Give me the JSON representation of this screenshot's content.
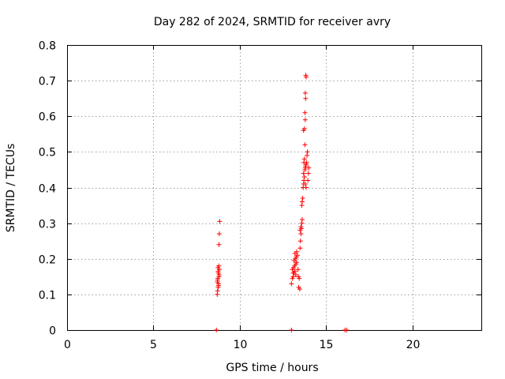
{
  "chart_data": {
    "type": "scatter",
    "title": "Day 282 of 2024, SRMTID for receiver avry",
    "xlabel": "GPS time / hours",
    "ylabel": "SRMTID / TECUs",
    "xlim": [
      0,
      24
    ],
    "ylim": [
      0,
      0.8
    ],
    "xticks": [
      0,
      5,
      10,
      15,
      20
    ],
    "yticks": [
      0,
      0.1,
      0.2,
      0.3,
      0.4,
      0.5,
      0.6,
      0.7,
      0.8
    ],
    "xtick_labels": [
      "0",
      "5",
      "10",
      "15",
      "20"
    ],
    "ytick_labels": [
      "0",
      "0.1",
      "0.2",
      "0.3",
      "0.4",
      "0.5",
      "0.6",
      "0.7",
      "0.8"
    ],
    "grid": true,
    "marker": "plus",
    "color": "#ff0000",
    "series": [
      {
        "name": "SRMTID",
        "points": [
          [
            8.7,
            0.1
          ],
          [
            8.72,
            0.11
          ],
          [
            8.75,
            0.12
          ],
          [
            8.78,
            0.13
          ],
          [
            8.72,
            0.14
          ],
          [
            8.8,
            0.15
          ],
          [
            8.76,
            0.16
          ],
          [
            8.82,
            0.17
          ],
          [
            8.74,
            0.175
          ],
          [
            8.79,
            0.18
          ],
          [
            8.71,
            0.135
          ],
          [
            8.77,
            0.125
          ],
          [
            8.73,
            0.145
          ],
          [
            8.81,
            0.155
          ],
          [
            8.75,
            0.165
          ],
          [
            8.8,
            0.24
          ],
          [
            8.82,
            0.27
          ],
          [
            8.84,
            0.305
          ],
          [
            13.0,
            0.13
          ],
          [
            13.05,
            0.145
          ],
          [
            13.1,
            0.15
          ],
          [
            13.15,
            0.16
          ],
          [
            13.2,
            0.165
          ],
          [
            13.05,
            0.17
          ],
          [
            13.12,
            0.175
          ],
          [
            13.18,
            0.18
          ],
          [
            13.25,
            0.185
          ],
          [
            13.3,
            0.19
          ],
          [
            13.15,
            0.195
          ],
          [
            13.22,
            0.2
          ],
          [
            13.28,
            0.205
          ],
          [
            13.35,
            0.21
          ],
          [
            13.2,
            0.215
          ],
          [
            13.3,
            0.22
          ],
          [
            13.1,
            0.16
          ],
          [
            13.25,
            0.155
          ],
          [
            13.4,
            0.15
          ],
          [
            13.45,
            0.145
          ],
          [
            13.38,
            0.17
          ],
          [
            13.42,
            0.12
          ],
          [
            13.48,
            0.115
          ],
          [
            13.5,
            0.23
          ],
          [
            13.52,
            0.25
          ],
          [
            13.55,
            0.27
          ],
          [
            13.5,
            0.28
          ],
          [
            13.58,
            0.285
          ],
          [
            13.55,
            0.29
          ],
          [
            13.6,
            0.3
          ],
          [
            13.62,
            0.31
          ],
          [
            13.6,
            0.35
          ],
          [
            13.62,
            0.36
          ],
          [
            13.65,
            0.37
          ],
          [
            13.68,
            0.4
          ],
          [
            13.7,
            0.41
          ],
          [
            13.72,
            0.42
          ],
          [
            13.75,
            0.43
          ],
          [
            13.7,
            0.44
          ],
          [
            13.78,
            0.45
          ],
          [
            13.8,
            0.455
          ],
          [
            13.82,
            0.46
          ],
          [
            13.85,
            0.465
          ],
          [
            13.88,
            0.47
          ],
          [
            13.9,
            0.49
          ],
          [
            13.92,
            0.5
          ],
          [
            13.8,
            0.41
          ],
          [
            13.85,
            0.4
          ],
          [
            13.95,
            0.42
          ],
          [
            13.98,
            0.44
          ],
          [
            14.0,
            0.455
          ],
          [
            13.72,
            0.47
          ],
          [
            13.75,
            0.48
          ],
          [
            13.78,
            0.52
          ],
          [
            13.7,
            0.56
          ],
          [
            13.75,
            0.565
          ],
          [
            13.8,
            0.59
          ],
          [
            13.78,
            0.61
          ],
          [
            13.82,
            0.65
          ],
          [
            13.8,
            0.665
          ],
          [
            13.85,
            0.71
          ],
          [
            13.83,
            0.715
          ],
          [
            8.65,
            0.0
          ],
          [
            13.0,
            0.0
          ],
          [
            16.1,
            0.0
          ],
          [
            16.2,
            0.0
          ]
        ]
      }
    ]
  }
}
